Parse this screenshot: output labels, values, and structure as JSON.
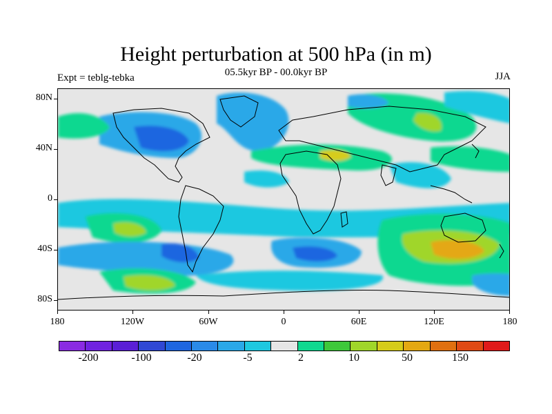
{
  "title": "Height perturbation at 500 hPa (in m)",
  "subtitle": "05.5kyr BP - 00.0kyr BP",
  "left_label": "Expt = teblg-tebka",
  "right_label": "JJA",
  "y_ticks": [
    "80N",
    "40N",
    "0",
    "40S",
    "80S"
  ],
  "x_ticks": [
    "180",
    "120W",
    "60W",
    "0",
    "60E",
    "120E",
    "180"
  ],
  "colorbar": {
    "colors": [
      "#8a2be2",
      "#7022e0",
      "#5a1fd6",
      "#3048d4",
      "#1f66e0",
      "#2a8ae8",
      "#2aa8e8",
      "#1ec8e0",
      "#e6e6e6",
      "#10d890",
      "#3ec83a",
      "#a0d62a",
      "#d6cc1a",
      "#e4a812",
      "#e07010",
      "#e04a14",
      "#e01a1a"
    ],
    "labels": [
      "-200",
      "-100",
      "-20",
      "-5",
      "2",
      "10",
      "50",
      "150"
    ]
  },
  "palette": {
    "background": "#e6e6e6",
    "neg1": "#1ec8e0",
    "neg2": "#2aa8e8",
    "neg3": "#1f66e0",
    "pos1": "#10d890",
    "pos2": "#3ec83a",
    "pos3": "#a0d62a",
    "pos4": "#d6cc1a",
    "pos5": "#e4a812"
  }
}
